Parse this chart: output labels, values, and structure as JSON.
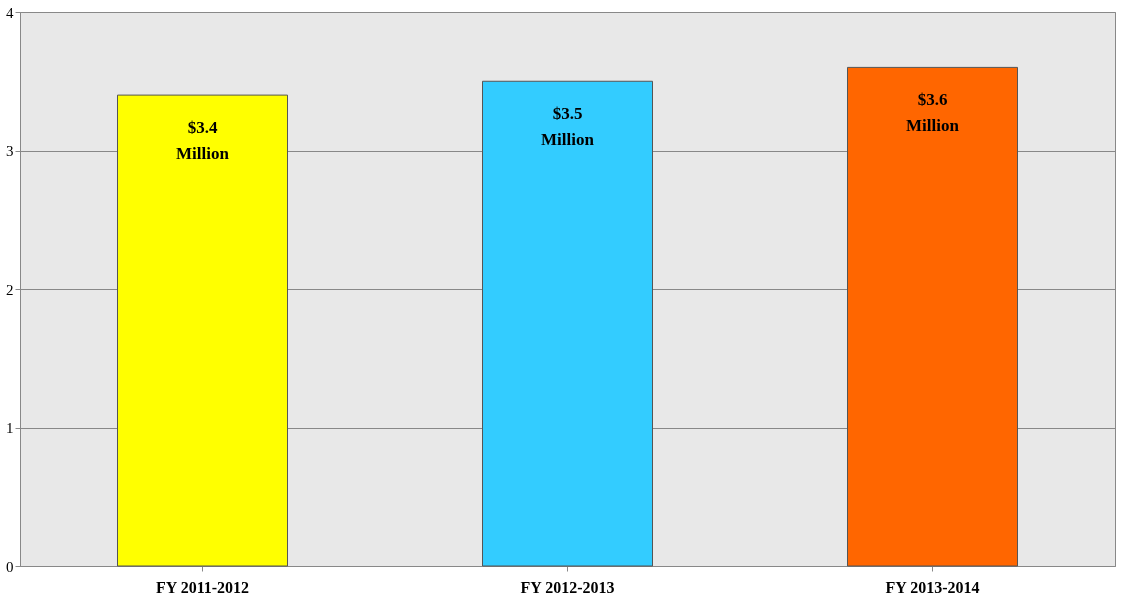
{
  "chart_data": {
    "type": "bar",
    "categories": [
      "FY 2011-2012",
      "FY 2012-2013",
      "FY 2013-2014"
    ],
    "values": [
      3.4,
      3.5,
      3.6
    ],
    "colors": [
      "#ffff00",
      "#33ccff",
      "#ff6600"
    ],
    "value_labels": [
      "$3.4 Million",
      "$3.5 Million",
      "$3.6 Million"
    ],
    "ylim": [
      0,
      4
    ],
    "yticks": [
      0,
      1,
      2,
      3,
      4
    ],
    "grid": "y"
  }
}
